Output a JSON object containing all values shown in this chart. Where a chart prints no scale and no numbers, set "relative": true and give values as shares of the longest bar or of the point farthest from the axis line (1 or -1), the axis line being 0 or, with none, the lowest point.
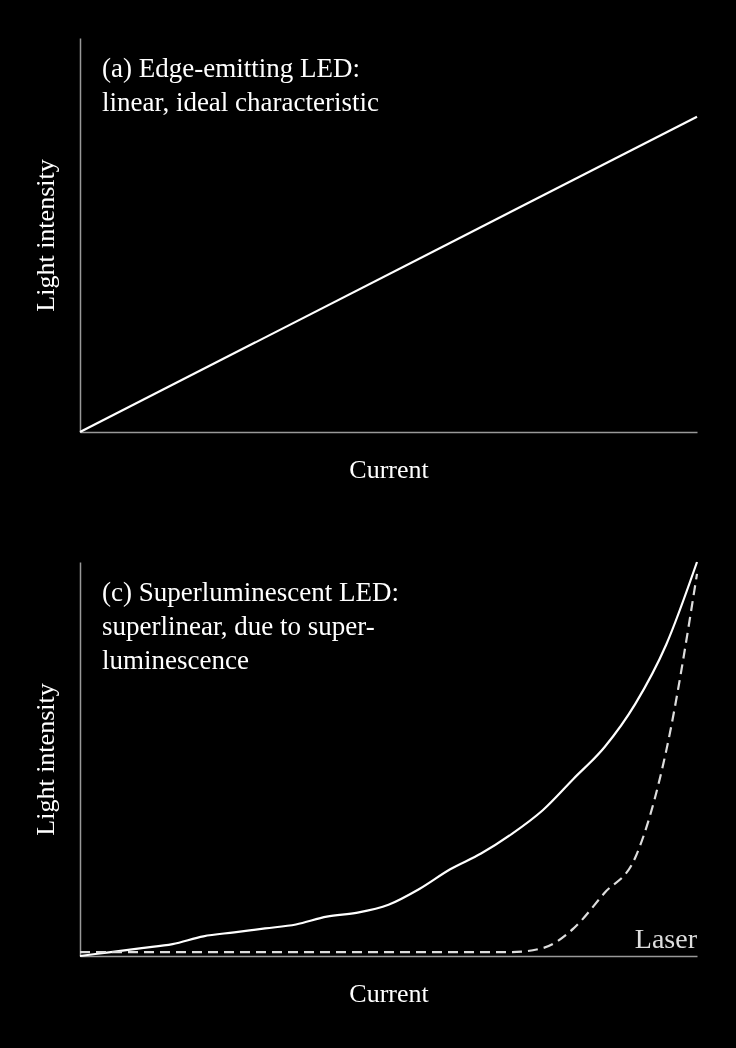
{
  "chart_data": [
    {
      "type": "line",
      "title": "(a) Edge-emitting LED:\n      linear, ideal characteristic",
      "xlabel": "Current",
      "ylabel": "Light intensity",
      "relative": true,
      "tick_labels": false,
      "categories": [
        null,
        null
      ],
      "series": [
        {
          "color": "#ffffff",
          "values": [
            0,
            1
          ]
        }
      ]
    },
    {
      "type": "line",
      "title": "(c) Superluminescent LED:\n      superlinear, due to super-\n      luminescence",
      "xlabel": "Current",
      "ylabel": "Light intensity",
      "relative": true,
      "tick_labels": false,
      "categories": [
        null,
        null,
        null,
        null,
        null,
        null,
        null,
        null,
        null,
        null,
        null,
        null,
        null,
        null,
        null,
        null,
        null,
        null,
        null,
        null,
        null
      ],
      "series": [
        {
          "color": "#ffffff",
          "values": [
            0,
            0.01,
            0.02,
            0.03,
            0.05,
            0.06,
            0.07,
            0.08,
            0.1,
            0.11,
            0.13,
            0.17,
            0.22,
            0.26,
            0.31,
            0.37,
            0.45,
            0.53,
            0.64,
            0.79,
            1
          ]
        },
        {
          "name": "Laser",
          "color": "#dddddd",
          "line_style": "dashed",
          "values": [
            0.01,
            0.01,
            0.01,
            0.01,
            0.01,
            0.01,
            0.01,
            0.01,
            0.01,
            0.01,
            0.01,
            0.01,
            0.01,
            0.01,
            0.01,
            0.02,
            0.07,
            0.16,
            0.25,
            0.52,
            0.97
          ]
        }
      ]
    }
  ]
}
